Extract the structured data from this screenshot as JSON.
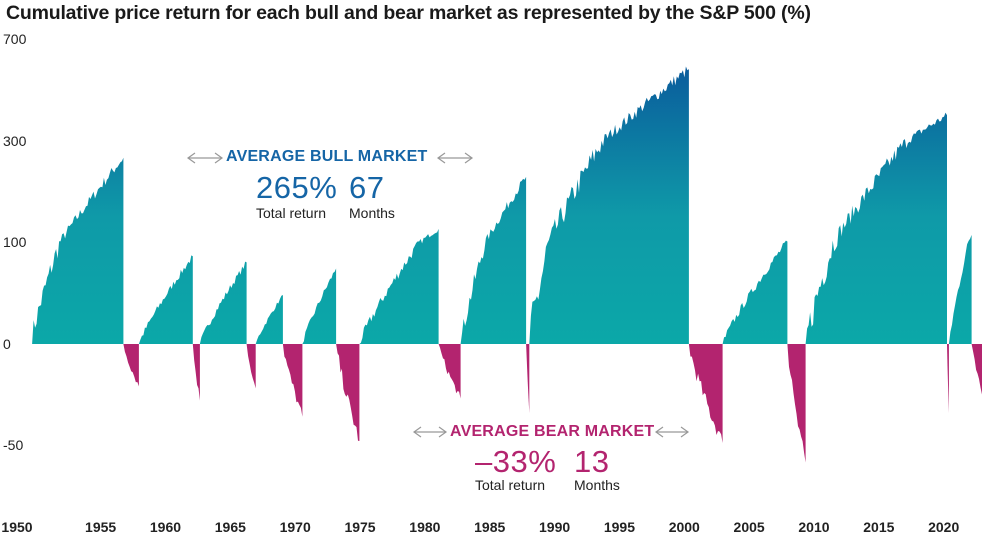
{
  "chart_data": {
    "type": "area",
    "title": "Cumulative price return for each bull and bear market as represented by the S&P 500 (%)",
    "xlabel": "",
    "ylabel": "",
    "y_scale": "log-style (cumulative growth)",
    "y_ticks": [
      700,
      300,
      100,
      0,
      -50
    ],
    "x_ticks": [
      1950,
      1955,
      1960,
      1965,
      1970,
      1975,
      1980,
      1985,
      1990,
      1995,
      2000,
      2005,
      2010,
      2015,
      2020
    ],
    "xlim": [
      1949.4,
      2022.8
    ],
    "grid": false,
    "colors": {
      "bull_bottom": "#0ba8a8",
      "bull_top": "#0a5a9c",
      "bear": "#b3246f",
      "bull_text": "#1565a6",
      "bear_text": "#b3246f",
      "arrow": "#999999"
    },
    "bull_markets": [
      {
        "start": 1949.45,
        "end": 1956.6,
        "peak_return": 267
      },
      {
        "start": 1957.8,
        "end": 1961.95,
        "peak_return": 86
      },
      {
        "start": 1962.5,
        "end": 1966.1,
        "peak_return": 80
      },
      {
        "start": 1966.8,
        "end": 1968.9,
        "peak_return": 48
      },
      {
        "start": 1970.4,
        "end": 1973.0,
        "peak_return": 74
      },
      {
        "start": 1974.8,
        "end": 1980.9,
        "peak_return": 126
      },
      {
        "start": 1982.6,
        "end": 1987.65,
        "peak_return": 229
      },
      {
        "start": 1987.9,
        "end": 2000.2,
        "peak_return": 582
      },
      {
        "start": 2002.8,
        "end": 2007.8,
        "peak_return": 101
      },
      {
        "start": 2009.2,
        "end": 2020.1,
        "peak_return": 401
      },
      {
        "start": 2020.25,
        "end": 2022.0,
        "peak_return": 114
      }
    ],
    "bear_markets": [
      {
        "start": 1956.6,
        "end": 1957.8,
        "trough_return": -21
      },
      {
        "start": 1961.95,
        "end": 1962.5,
        "trough_return": -28
      },
      {
        "start": 1966.1,
        "end": 1966.8,
        "trough_return": -22
      },
      {
        "start": 1968.9,
        "end": 1970.4,
        "trough_return": -36
      },
      {
        "start": 1973.0,
        "end": 1974.8,
        "trough_return": -48
      },
      {
        "start": 1980.9,
        "end": 1982.6,
        "trough_return": -27
      },
      {
        "start": 1987.65,
        "end": 1987.9,
        "trough_return": -34
      },
      {
        "start": 2000.2,
        "end": 2002.8,
        "trough_return": -49
      },
      {
        "start": 2007.8,
        "end": 2009.2,
        "trough_return": -57
      },
      {
        "start": 2020.1,
        "end": 2020.25,
        "trough_return": -34
      },
      {
        "start": 2022.0,
        "end": 2022.8,
        "trough_return": -25
      }
    ],
    "annotations": {
      "bull": {
        "label": "AVERAGE BULL MARKET",
        "return_value": "265%",
        "months_value": "67",
        "return_label": "Total return",
        "months_label": "Months"
      },
      "bear": {
        "label": "AVERAGE BEAR MARKET",
        "return_value": "–33%",
        "months_value": "13",
        "return_label": "Total return",
        "months_label": "Months"
      }
    }
  }
}
